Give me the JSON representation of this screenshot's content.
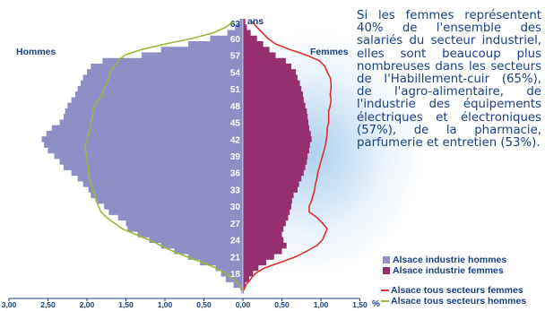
{
  "description_text": "Si les femmes représentent 40% de l'ensemble des salariés du secteur industriel, elles sont beaucoup plus nombreuses dans les secteurs de l'Habillement-cuir (65%), de l'agro-alimentaire, de l'industrie des équipements électriques et électroniques (57%), de la pharmacie, parfumerie et entretien (53%).",
  "legend": {
    "bars_men": "Alsace industrie hommes",
    "bars_women": "Alsace industrie femmes",
    "line_women": "Alsace tous secteurs femmes",
    "line_men": "Alsace tous secteurs hommes"
  },
  "colors": {
    "men_bar": "#8f8fc7",
    "women_bar": "#962f6e",
    "women_line": "#e22d2d",
    "men_line": "#99b83a",
    "text": "#1a3f86"
  },
  "chart_data": {
    "type": "bar",
    "orientation": "horizontal population pyramid",
    "labels": {
      "left_group": "Hommes",
      "right_group": "Femmes",
      "age_unit": "ans",
      "percent_unit": "%"
    },
    "x_ticks": [
      "3,00",
      "2,50",
      "2,00",
      "1,50",
      "1,00",
      "0,50",
      "0,00",
      "0,50",
      "1,00",
      "1,50"
    ],
    "x_tick_values": [
      -3.0,
      -2.5,
      -2.0,
      -1.5,
      -1.0,
      -0.5,
      0,
      0.5,
      1.0,
      1.5
    ],
    "xlim": [
      -3.0,
      1.5
    ],
    "y_ticks": [
      "15",
      "18",
      "21",
      "24",
      "27",
      "30",
      "33",
      "36",
      "39",
      "42",
      "45",
      "48",
      "51",
      "54",
      "57",
      "60",
      "63"
    ],
    "age_range": [
      15,
      63
    ],
    "ages": [
      15,
      16,
      17,
      18,
      19,
      20,
      21,
      22,
      23,
      24,
      25,
      26,
      27,
      28,
      29,
      30,
      31,
      32,
      33,
      34,
      35,
      36,
      37,
      38,
      39,
      40,
      41,
      42,
      43,
      44,
      45,
      46,
      47,
      48,
      49,
      50,
      51,
      52,
      53,
      54,
      55,
      56,
      57,
      58,
      59,
      60,
      61,
      62,
      63
    ],
    "series": [
      {
        "name": "Alsace industrie hommes",
        "kind": "bar",
        "side": "left",
        "values": [
          0.02,
          0.12,
          0.22,
          0.28,
          0.35,
          0.55,
          0.7,
          0.88,
          1.05,
          1.2,
          1.35,
          1.48,
          1.5,
          1.6,
          1.72,
          1.78,
          1.88,
          1.95,
          1.98,
          2.05,
          2.12,
          2.2,
          2.3,
          2.35,
          2.42,
          2.5,
          2.55,
          2.58,
          2.52,
          2.45,
          2.35,
          2.3,
          2.28,
          2.25,
          2.2,
          2.15,
          2.12,
          2.08,
          2.05,
          2.0,
          1.95,
          1.8,
          1.3,
          1.05,
          0.7,
          0.42,
          0.2,
          0.1,
          0.04
        ]
      },
      {
        "name": "Alsace industrie femmes",
        "kind": "bar",
        "side": "right",
        "values": [
          0.01,
          0.03,
          0.08,
          0.13,
          0.2,
          0.3,
          0.4,
          0.5,
          0.56,
          0.52,
          0.5,
          0.52,
          0.55,
          0.58,
          0.6,
          0.62,
          0.63,
          0.65,
          0.7,
          0.72,
          0.75,
          0.78,
          0.8,
          0.82,
          0.83,
          0.85,
          0.86,
          0.88,
          0.87,
          0.85,
          0.84,
          0.83,
          0.82,
          0.8,
          0.78,
          0.77,
          0.75,
          0.73,
          0.7,
          0.68,
          0.62,
          0.55,
          0.42,
          0.34,
          0.26,
          0.18,
          0.1,
          0.05,
          0.03
        ]
      },
      {
        "name": "Alsace tous secteurs femmes",
        "kind": "line",
        "side": "right",
        "values": [
          0.01,
          0.04,
          0.1,
          0.16,
          0.28,
          0.48,
          0.68,
          0.82,
          0.95,
          1.02,
          1.05,
          1.08,
          1.02,
          0.95,
          0.85,
          0.85,
          0.88,
          0.9,
          0.92,
          0.93,
          0.95,
          0.96,
          0.98,
          1.0,
          1.02,
          1.04,
          1.06,
          1.07,
          1.08,
          1.08,
          1.1,
          1.1,
          1.1,
          1.12,
          1.13,
          1.12,
          1.13,
          1.13,
          1.12,
          1.08,
          1.05,
          0.98,
          0.82,
          0.6,
          0.42,
          0.32,
          0.25,
          0.18,
          0.12
        ]
      },
      {
        "name": "Alsace tous secteurs hommes",
        "kind": "line",
        "side": "left",
        "values": [
          0.02,
          0.05,
          0.12,
          0.22,
          0.35,
          0.52,
          0.72,
          0.9,
          1.05,
          1.2,
          1.38,
          1.55,
          1.65,
          1.75,
          1.82,
          1.85,
          1.88,
          1.9,
          1.92,
          1.95,
          1.97,
          1.98,
          1.98,
          2.0,
          2.0,
          2.02,
          2.02,
          2.0,
          1.98,
          1.95,
          1.95,
          1.93,
          1.92,
          1.9,
          1.85,
          1.8,
          1.78,
          1.75,
          1.72,
          1.7,
          1.65,
          1.6,
          1.52,
          1.3,
          1.0,
          0.65,
          0.38,
          0.22,
          0.12
        ]
      }
    ]
  }
}
